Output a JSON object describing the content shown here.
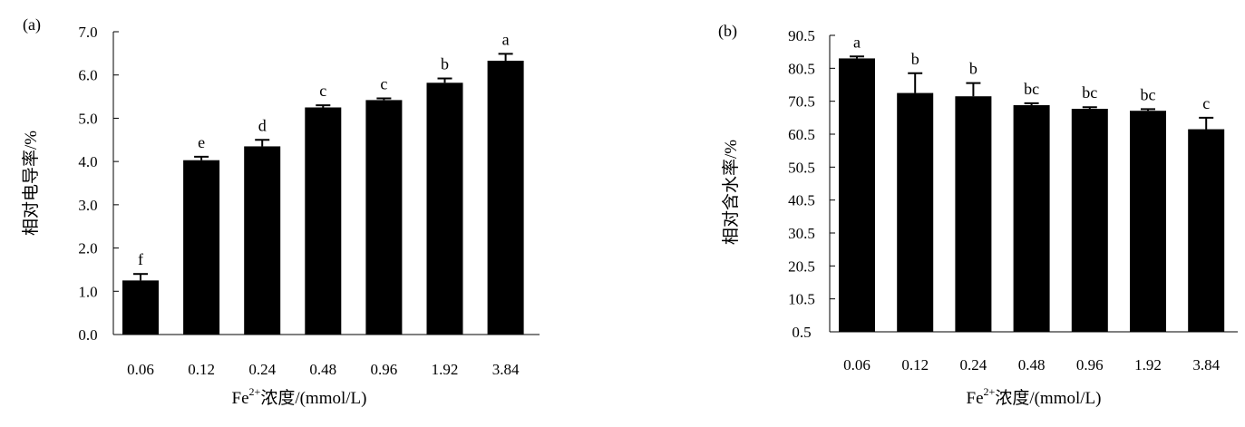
{
  "chart_data": [
    {
      "type": "bar",
      "panel_label": "(a)",
      "categories": [
        "0.06",
        "0.12",
        "0.24",
        "0.48",
        "0.96",
        "1.92",
        "3.84"
      ],
      "values": [
        1.25,
        4.03,
        4.35,
        5.25,
        5.42,
        5.82,
        6.33
      ],
      "errors": [
        0.15,
        0.08,
        0.15,
        0.05,
        0.04,
        0.1,
        0.16
      ],
      "significance": [
        "f",
        "e",
        "d",
        "c",
        "c",
        "b",
        "a"
      ],
      "ylabel": "相对电导率/%",
      "xlabel_prefix": "Fe",
      "xlabel_sup": "2+",
      "xlabel_suffix": "浓度/(mmol/L)",
      "ylim": [
        0.0,
        7.0
      ],
      "yticks": [
        "0.0",
        "1.0",
        "2.0",
        "3.0",
        "4.0",
        "5.0",
        "6.0",
        "7.0"
      ],
      "bar_color": "#000000",
      "grid": false
    },
    {
      "type": "bar",
      "panel_label": "(b)",
      "categories": [
        "0.06",
        "0.12",
        "0.24",
        "0.48",
        "0.96",
        "1.92",
        "3.84"
      ],
      "values": [
        83.5,
        73.0,
        72.0,
        69.3,
        68.2,
        67.6,
        62.0
      ],
      "errors": [
        0.6,
        6.0,
        4.0,
        0.6,
        0.5,
        0.5,
        3.5
      ],
      "significance": [
        "a",
        "b",
        "b",
        "bc",
        "bc",
        "bc",
        "c"
      ],
      "ylabel": "相对含水率/%",
      "xlabel_prefix": "Fe",
      "xlabel_sup": "2+",
      "xlabel_suffix": "浓度/(mmol/L)",
      "ylim": [
        0.5,
        90.5
      ],
      "yticks": [
        "0.5",
        "10.5",
        "20.5",
        "30.5",
        "40.5",
        "50.5",
        "60.5",
        "70.5",
        "80.5",
        "90.5"
      ],
      "bar_color": "#000000",
      "grid": false
    }
  ]
}
